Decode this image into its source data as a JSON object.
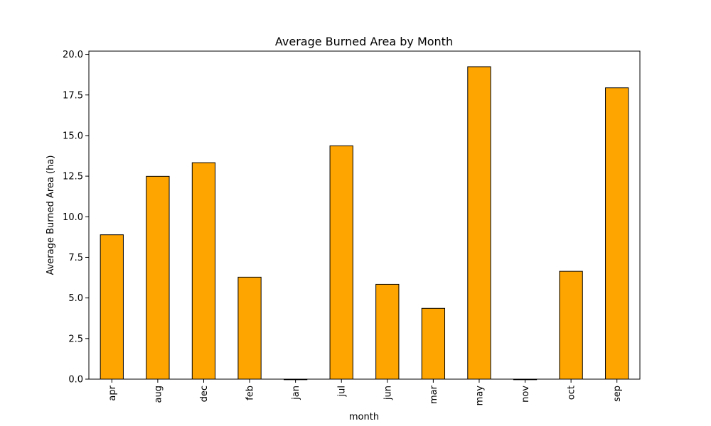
{
  "chart_data": {
    "type": "bar",
    "title": "Average Burned Area by Month",
    "xlabel": "month",
    "ylabel": "Average Burned Area (ha)",
    "categories": [
      "apr",
      "aug",
      "dec",
      "feb",
      "jan",
      "jul",
      "jun",
      "mar",
      "may",
      "nov",
      "oct",
      "sep"
    ],
    "values": [
      8.89,
      12.49,
      13.33,
      6.28,
      0.0,
      14.37,
      5.84,
      4.36,
      19.24,
      0.0,
      6.64,
      17.94
    ],
    "ylim": [
      0,
      20.2
    ],
    "yticks": [
      0.0,
      2.5,
      5.0,
      7.5,
      10.0,
      12.5,
      15.0,
      17.5,
      20.0
    ],
    "ytick_labels": [
      "0.0",
      "2.5",
      "5.0",
      "7.5",
      "10.0",
      "12.5",
      "15.0",
      "17.5",
      "20.0"
    ],
    "bar_color": "#FFA500",
    "edge_color": "#000000",
    "grid": false,
    "legend": false
  }
}
